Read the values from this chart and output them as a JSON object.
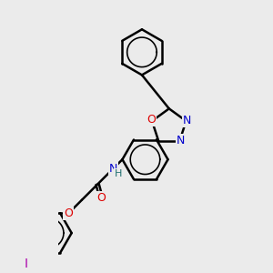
{
  "background_color": "#ebebeb",
  "bond_color": "#000000",
  "bond_width": 1.8,
  "atom_colors": {
    "N": "#0000cc",
    "O": "#dd0000",
    "I": "#aa00aa",
    "H": "#207070",
    "C": "#000000"
  },
  "font_size": 9
}
